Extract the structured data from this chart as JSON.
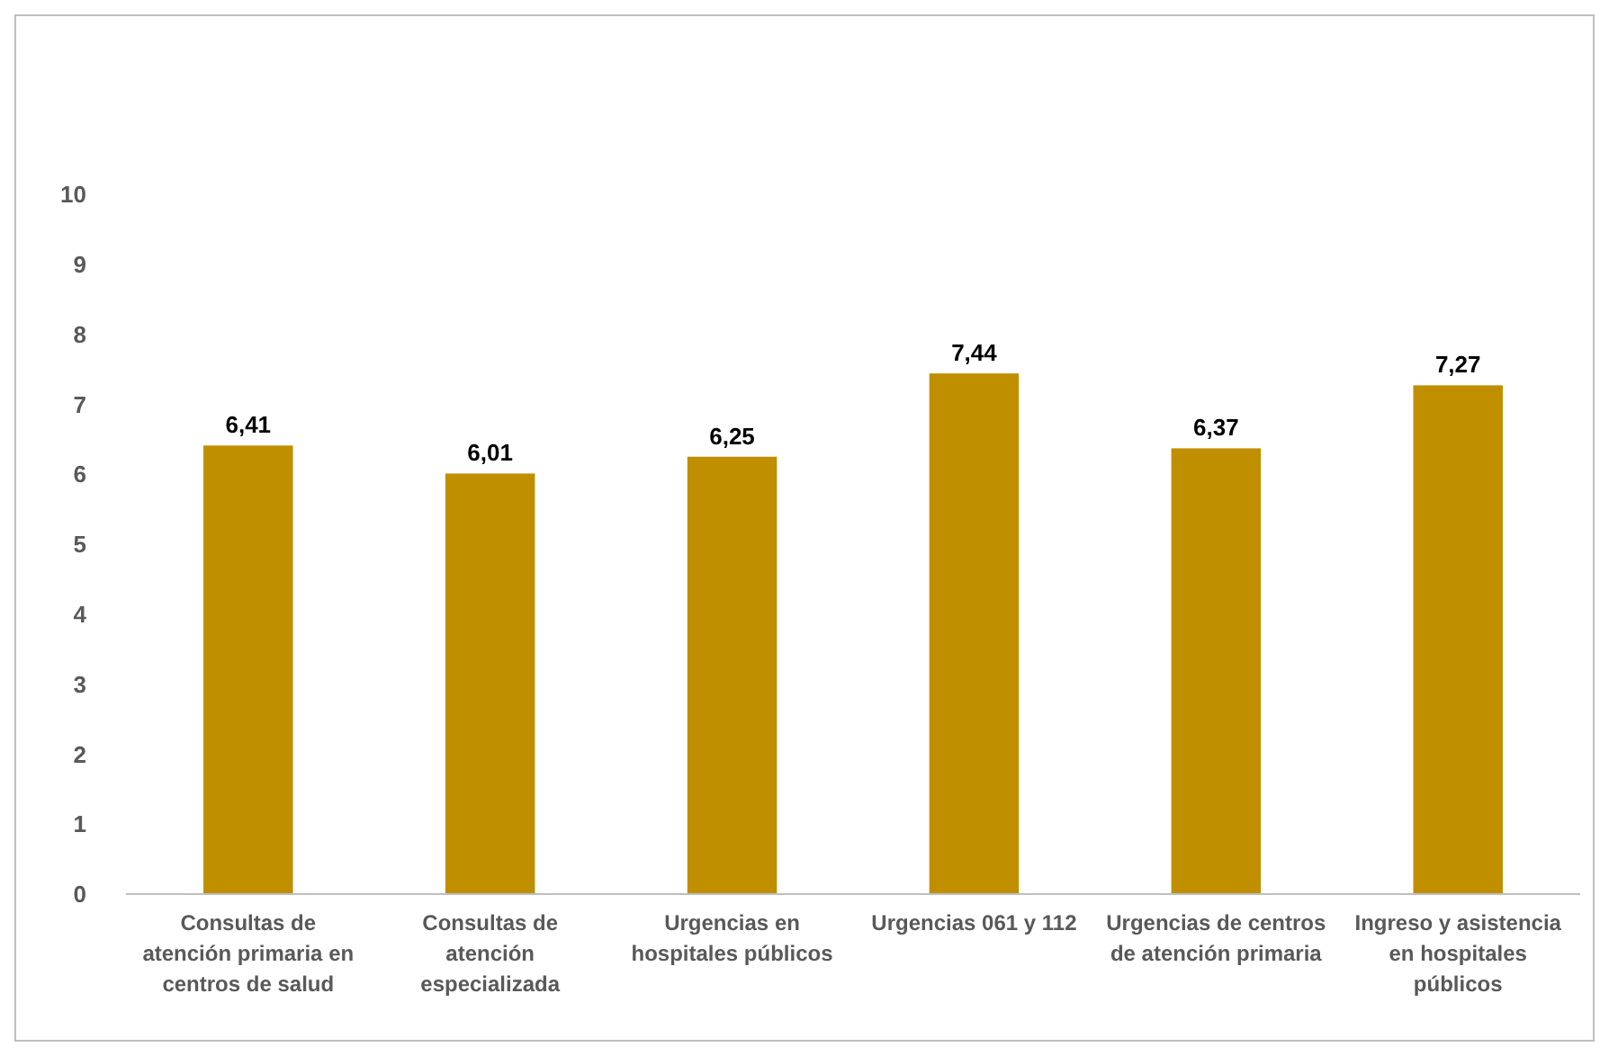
{
  "chart_data": {
    "type": "bar",
    "categories": [
      "Consultas de atención primaria en centros de salud",
      "Consultas de atención especializada",
      "Urgencias en hospitales públicos",
      "Urgencias 061 y 112",
      "Urgencias de centros de atención primaria",
      "Ingreso y asistencia en hospitales públicos"
    ],
    "values": [
      6.41,
      6.01,
      6.25,
      7.44,
      6.37,
      7.27
    ],
    "value_labels": [
      "6,41",
      "6,01",
      "6,25",
      "7,44",
      "6,37",
      "7,27"
    ],
    "color": "#bf8f00",
    "ylim": [
      0,
      10
    ],
    "yticks": [
      0,
      1,
      2,
      3,
      4,
      5,
      6,
      7,
      8,
      9,
      10
    ],
    "grid": false
  }
}
